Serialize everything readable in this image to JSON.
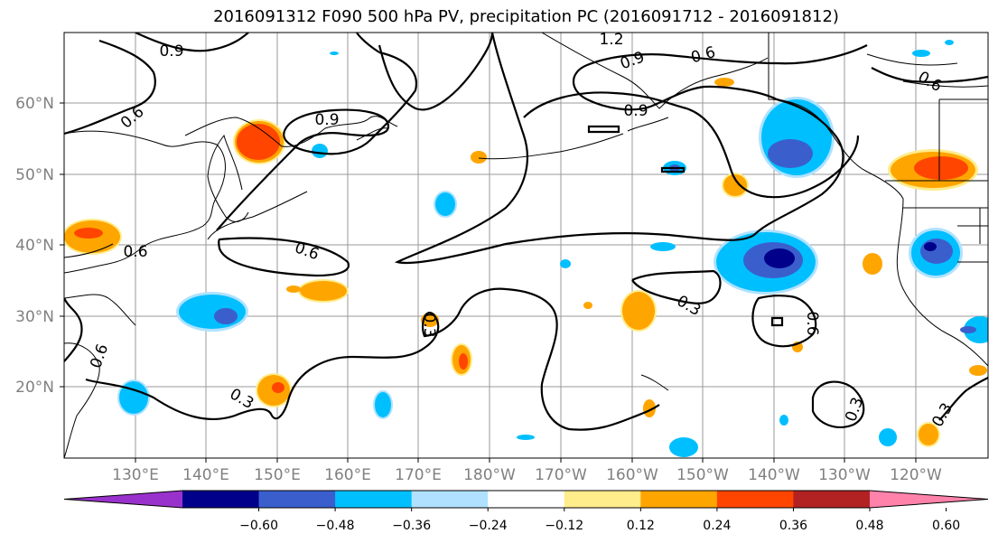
{
  "title": "2016091312 F090 500 hPa PV, precipitation PC (2016091712 - 2016091812)",
  "lat_labels": [
    "60°N",
    "50°N",
    "40°N",
    "30°N",
    "20°N"
  ],
  "lon_labels": [
    "130°E",
    "140°E",
    "150°E",
    "160°E",
    "170°E",
    "180°W",
    "170°W",
    "160°W",
    "150°W",
    "140°W",
    "130°W",
    "120°W"
  ],
  "contour_labels": [
    "0.9",
    "1.2",
    "0.9",
    "0.6",
    "0.6",
    "0.9",
    "0.9",
    "0.6",
    "0.6",
    "0.6",
    "0.6",
    "0.3",
    "0.3",
    "0.6",
    "0.3",
    "0.3",
    "0.3"
  ],
  "colorbar": {
    "colors": [
      "#9932cc",
      "#00008b",
      "#3a5fcd",
      "#00bfff",
      "#b0e2ff",
      "#ffffff",
      "#ffec8b",
      "#ffa500",
      "#ff4500",
      "#b22222",
      "#ff82ab"
    ],
    "tick_labels": [
      "−0.60",
      "−0.48",
      "−0.36",
      "−0.24",
      "−0.12",
      "0.12",
      "0.24",
      "0.36",
      "0.48",
      "0.60"
    ]
  }
}
